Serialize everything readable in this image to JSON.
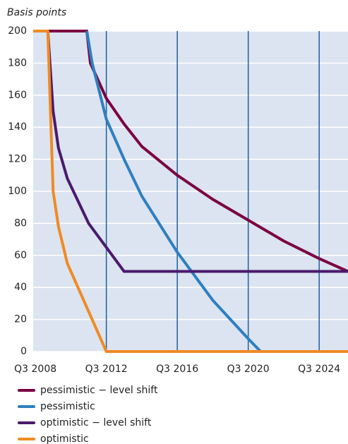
{
  "chart_data": {
    "type": "line",
    "y_label": "Basis points",
    "xlim": [
      2008.375,
      2026.125
    ],
    "ylim": [
      0,
      200
    ],
    "xticks": [
      {
        "value": 2008.5,
        "label": "Q3 2008"
      },
      {
        "value": 2012.5,
        "label": "Q3 2012"
      },
      {
        "value": 2016.5,
        "label": "Q3 2016"
      },
      {
        "value": 2020.5,
        "label": "Q3 2020"
      },
      {
        "value": 2024.5,
        "label": "Q3 2024"
      }
    ],
    "yticks": [
      0,
      20,
      40,
      60,
      80,
      100,
      120,
      140,
      160,
      180,
      200
    ],
    "grid": true,
    "series": [
      {
        "name": "pessimistic − level shift",
        "color": "#7b0041",
        "x": [
          2008.375,
          2011.4,
          2011.6,
          2012.5,
          2013.5,
          2014.5,
          2016.5,
          2018.5,
          2020.5,
          2022.5,
          2024.5,
          2026.125
        ],
        "values": [
          200,
          200,
          180,
          158,
          142,
          128,
          110,
          95,
          82,
          69,
          58,
          50
        ]
      },
      {
        "name": "pessimistic",
        "color": "#2e7fc0",
        "x": [
          2011.4,
          2011.7,
          2012.5,
          2013.5,
          2014.5,
          2016.5,
          2018.5,
          2020.5,
          2021.2,
          2026.125
        ],
        "values": [
          200,
          180,
          145,
          120,
          97,
          62,
          32,
          8,
          0,
          0
        ]
      },
      {
        "name": "optimistic − level shift",
        "color": "#4b1a6e",
        "x": [
          2008.375,
          2009.2,
          2009.5,
          2009.8,
          2010.3,
          2011.5,
          2012.5,
          2013.5,
          2026.125
        ],
        "values": [
          200,
          200,
          150,
          127,
          108,
          80,
          65,
          50,
          50
        ]
      },
      {
        "name": "optimistic",
        "color": "#f08a24",
        "x": [
          2008.375,
          2009.2,
          2009.5,
          2009.8,
          2010.3,
          2011.5,
          2012.5,
          2026.125
        ],
        "values": [
          200,
          200,
          100,
          78,
          55,
          25,
          0,
          0
        ]
      }
    ]
  }
}
